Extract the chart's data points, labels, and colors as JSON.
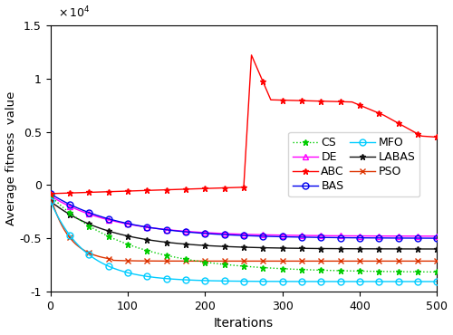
{
  "xlabel": "Iterations",
  "ylabel": "Average fitness  value",
  "xlim": [
    0,
    500
  ],
  "ylim_min": -10000,
  "ylim_max": 15000,
  "scale_factor": 10000,
  "series_CS": {
    "color": "#00cc00",
    "linestyle": ":",
    "marker": "*",
    "label": "CS"
  },
  "series_ABC": {
    "color": "#ff0000",
    "linestyle": "-",
    "marker": "*",
    "label": "ABC"
  },
  "series_MFO": {
    "color": "#00ccff",
    "linestyle": "-",
    "marker": "o",
    "label": "MFO"
  },
  "series_PSO": {
    "color": "#dd3300",
    "linestyle": "-",
    "marker": "x",
    "label": "PSO"
  },
  "series_DE": {
    "color": "#ff00ff",
    "linestyle": "-",
    "marker": "^",
    "label": "DE"
  },
  "series_BAS": {
    "color": "#0000ee",
    "linestyle": "-",
    "marker": "o",
    "label": "BAS"
  },
  "series_LABAS": {
    "color": "#111111",
    "linestyle": "-",
    "marker": "*",
    "label": "LABAS"
  },
  "legend_cols": 2,
  "legend_fontsize": 9.0
}
